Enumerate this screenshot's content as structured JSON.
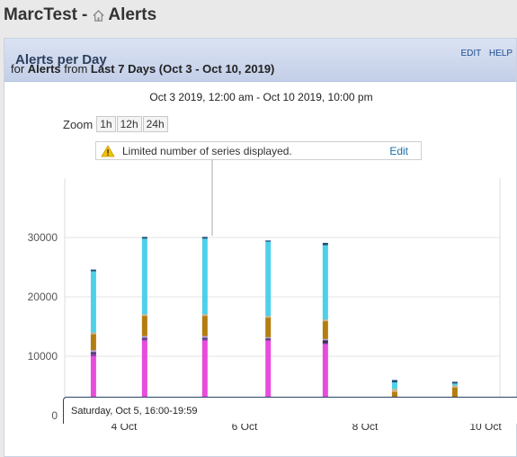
{
  "header": {
    "app": "MarcTest",
    "separator": "-",
    "page": "Alerts"
  },
  "panel": {
    "title": "Alerts per Day",
    "links": {
      "edit": "EDIT",
      "help": "HELP"
    },
    "subtitle": {
      "prefix": "for",
      "subject": "Alerts",
      "from": "from",
      "range": "Last 7 Days (Oct 3 - Oct 10, 2019)"
    },
    "time_range": "Oct 3 2019, 12:00 am - Oct 10 2019, 10:00 pm",
    "zoom": {
      "label": "Zoom",
      "options": [
        "1h",
        "12h",
        "24h"
      ]
    },
    "warning": {
      "text": "Limited number of series displayed.",
      "edit": "Edit"
    },
    "tooltip": "Saturday, Oct 5, 16:00-19:59"
  },
  "colors": {
    "magenta": "#e84cdc",
    "purple": "#8a3cb5",
    "dark": "#3d2a54",
    "lavender": "#b49fe0",
    "olive": "#b47d10",
    "tan": "#c9b28a",
    "cyan": "#4ed0ea",
    "navy": "#1f4f7a"
  },
  "chart_data": {
    "type": "bar",
    "stacked": true,
    "ylim": [
      0,
      40000
    ],
    "yticks": [
      "0",
      "10000",
      "20000",
      "30000"
    ],
    "xticks": [
      "4 Oct",
      "6 Oct",
      "8 Oct",
      "10 Oct"
    ],
    "series_colors": [
      "#e84cdc",
      "#8a3cb5",
      "#3d2a54",
      "#b49fe0",
      "#b47d10",
      "#c9b28a",
      "#4ed0ea",
      "#1f4f7a"
    ],
    "bars": [
      {
        "day": 3.7,
        "values": [
          10000,
          400,
          300,
          300,
          2700,
          300,
          10300,
          300
        ]
      },
      {
        "day": 4.55,
        "values": [
          12600,
          300,
          200,
          300,
          3400,
          300,
          12700,
          300
        ]
      },
      {
        "day": 5.55,
        "values": [
          12600,
          300,
          200,
          300,
          3400,
          300,
          12700,
          300
        ]
      },
      {
        "day": 6.6,
        "values": [
          12600,
          200,
          200,
          200,
          3300,
          300,
          12500,
          200
        ]
      },
      {
        "day": 7.55,
        "values": [
          12000,
          200,
          500,
          200,
          3000,
          300,
          12500,
          400
        ]
      },
      {
        "day": 8.7,
        "values": [
          500,
          500,
          100,
          300,
          2600,
          500,
          1100,
          400
        ]
      },
      {
        "day": 9.7,
        "values": [
          200,
          500,
          100,
          300,
          3600,
          400,
          300,
          300
        ]
      }
    ],
    "grid": true
  }
}
